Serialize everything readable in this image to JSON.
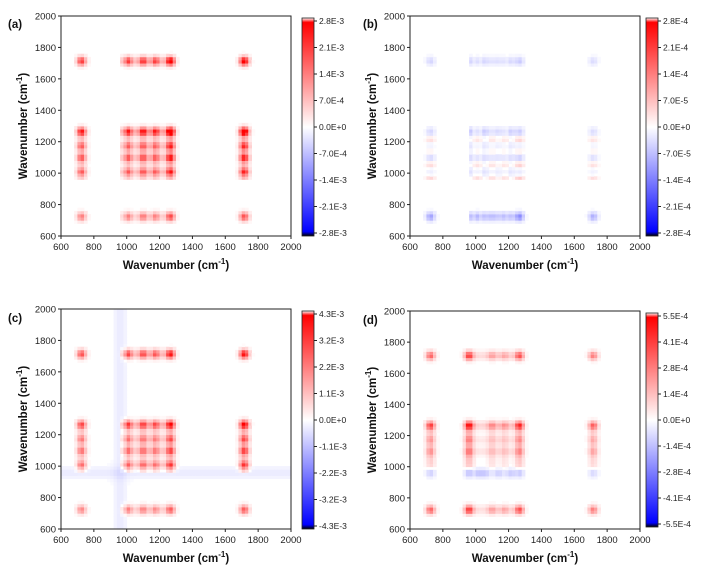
{
  "chart_data": [
    {
      "type": "heatmap",
      "panel_label": "(a)",
      "xlabel_base": "Wavenumber (cm",
      "xlabel_sup": "-1",
      "xlabel_end": ")",
      "ylabel_base": "Wavenumber (cm",
      "ylabel_sup": "-1",
      "ylabel_end": ")",
      "xlim": [
        600,
        2000
      ],
      "ylim": [
        600,
        2000
      ],
      "xticks": [
        "600",
        "800",
        "1000",
        "1200",
        "1400",
        "1600",
        "1800",
        "2000"
      ],
      "yticks": [
        "600",
        "800",
        "1000",
        "1200",
        "1400",
        "1600",
        "1800",
        "2000"
      ],
      "colorbar": [
        "2.8E-3",
        "2.1E-3",
        "1.4E-3",
        "7.0E-4",
        "0.0E+0",
        "-7.0E-4",
        "-1.4E-3",
        "-2.1E-3",
        "-2.8E-3"
      ],
      "vmax": 0.0028,
      "bands": [
        [
          725,
          0.55
        ],
        [
          1010,
          0.55
        ],
        [
          1100,
          0.6
        ],
        [
          1175,
          0.55
        ],
        [
          1265,
          0.8
        ],
        [
          1715,
          0.75
        ]
      ],
      "bands_y": [
        [
          725,
          0.35
        ],
        [
          1010,
          0.55
        ],
        [
          1100,
          0.6
        ],
        [
          1175,
          0.55
        ],
        [
          1265,
          0.8
        ],
        [
          1715,
          0.6
        ]
      ],
      "negatives": []
    },
    {
      "type": "heatmap",
      "panel_label": "(b)",
      "xlabel_base": "Wavenumber (cm",
      "xlabel_sup": "-1",
      "xlabel_end": ")",
      "ylabel_base": "Wavenumber (cm",
      "ylabel_sup": "-1",
      "ylabel_end": ")",
      "xlim": [
        600,
        2000
      ],
      "ylim": [
        600,
        2000
      ],
      "xticks": [
        "600",
        "800",
        "1000",
        "1200",
        "1400",
        "1600",
        "1800",
        "2000"
      ],
      "yticks": [
        "600",
        "800",
        "1000",
        "1200",
        "1400",
        "1600",
        "1800",
        "2000"
      ],
      "colorbar": [
        "2.8E-4",
        "2.1E-4",
        "1.4E-4",
        "7.0E-5",
        "0.0E+0",
        "-7.0E-5",
        "-1.4E-4",
        "-2.1E-4",
        "-2.8E-4"
      ],
      "vmax": 0.00028,
      "bands": [
        [
          725,
          0.7
        ],
        [
          1010,
          0.55
        ],
        [
          1100,
          0.55
        ],
        [
          1175,
          0.5
        ],
        [
          1265,
          0.9
        ],
        [
          1715,
          0.6
        ]
      ],
      "bands_y": [
        [
          725,
          -0.9
        ],
        [
          1010,
          -0.45
        ],
        [
          1100,
          -0.55
        ],
        [
          1175,
          -0.4
        ],
        [
          1265,
          -0.8
        ],
        [
          1715,
          -0.6
        ]
      ],
      "negatives": []
    },
    {
      "type": "heatmap",
      "panel_label": "(c)",
      "xlabel_base": "Wavenumber (cm",
      "xlabel_sup": "-1",
      "xlabel_end": ")",
      "ylabel_base": "Wavenumber (cm",
      "ylabel_sup": "-1",
      "ylabel_end": ")",
      "xlim": [
        600,
        2000
      ],
      "ylim": [
        600,
        2000
      ],
      "xticks": [
        "600",
        "800",
        "1000",
        "1200",
        "1400",
        "1600",
        "1800",
        "2000"
      ],
      "yticks": [
        "600",
        "800",
        "1000",
        "1200",
        "1400",
        "1600",
        "1800",
        "2000"
      ],
      "colorbar": [
        "4.3E-3",
        "3.2E-3",
        "2.2E-3",
        "1.1E-3",
        "0.0E+0",
        "-1.1E-3",
        "-2.2E-3",
        "-3.2E-3",
        "-4.3E-3"
      ],
      "vmax": 0.0043,
      "bands": [
        [
          725,
          0.5
        ],
        [
          1010,
          0.55
        ],
        [
          1100,
          0.55
        ],
        [
          1175,
          0.5
        ],
        [
          1265,
          0.7
        ],
        [
          1715,
          0.7
        ]
      ],
      "bands_y": [
        [
          725,
          0.4
        ],
        [
          1010,
          0.55
        ],
        [
          1100,
          0.55
        ],
        [
          1175,
          0.5
        ],
        [
          1265,
          0.7
        ],
        [
          1715,
          0.6
        ]
      ],
      "negatives": [
        [
          960,
          -0.08
        ]
      ]
    },
    {
      "type": "heatmap",
      "panel_label": "(d)",
      "xlabel_base": "Wavenumber (cm",
      "xlabel_sup": "-1",
      "xlabel_end": ")",
      "ylabel_base": "Wavenumber (cm",
      "ylabel_sup": "-1",
      "ylabel_end": ")",
      "xlim": [
        600,
        2000
      ],
      "ylim": [
        600,
        2000
      ],
      "xticks": [
        "600",
        "800",
        "1000",
        "1200",
        "1400",
        "1600",
        "1800",
        "2000"
      ],
      "yticks": [
        "600",
        "800",
        "1000",
        "1200",
        "1400",
        "1600",
        "1800",
        "2000"
      ],
      "colorbar": [
        "5.5E-4",
        "4.1E-4",
        "2.8E-4",
        "1.4E-4",
        "0.0E+0",
        "-1.4E-4",
        "-2.8E-4",
        "-4.1E-4",
        "-5.5E-4"
      ],
      "vmax": 0.00055,
      "bands": [
        [
          725,
          0.6
        ],
        [
          960,
          0.8
        ],
        [
          1100,
          0.4
        ],
        [
          1175,
          0.35
        ],
        [
          1265,
          0.7
        ],
        [
          1715,
          0.5
        ]
      ],
      "bands_y": [
        [
          725,
          0.4
        ],
        [
          960,
          -0.8
        ],
        [
          1100,
          0.35
        ],
        [
          1175,
          0.3
        ],
        [
          1265,
          0.55
        ],
        [
          1715,
          0.45
        ]
      ],
      "negatives": []
    }
  ]
}
